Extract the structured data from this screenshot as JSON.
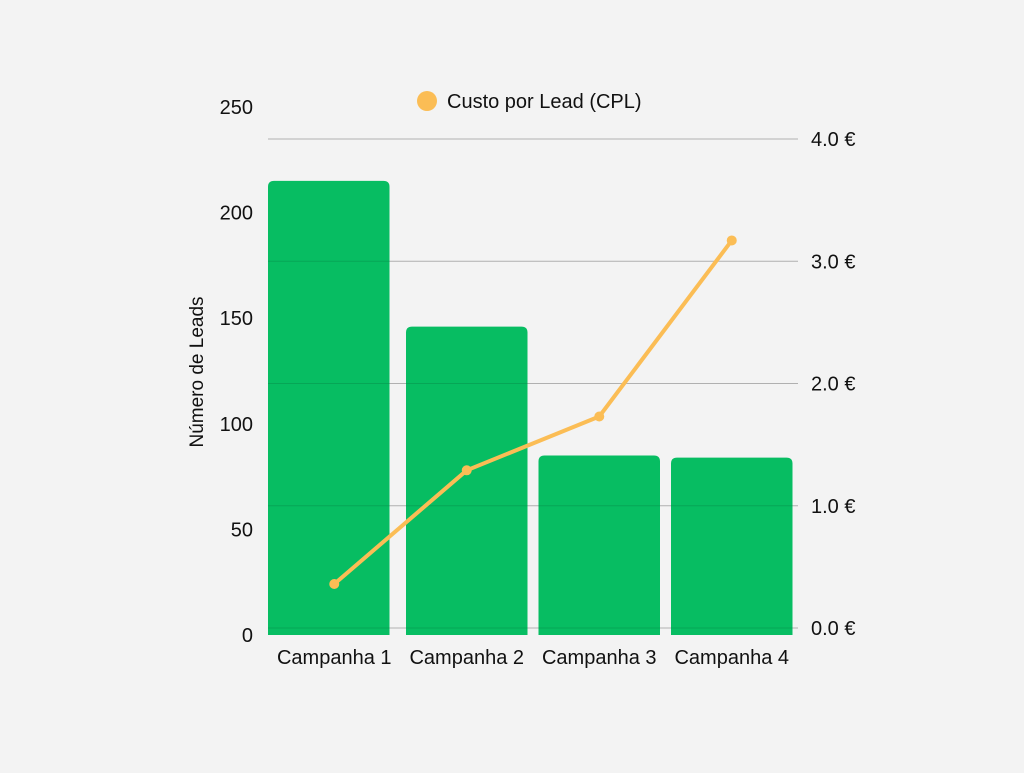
{
  "colors": {
    "background": "#f3f3f3",
    "bar": "#07bd62",
    "line": "#fbbd55",
    "grid": "#c9c9c9",
    "text": "#111111"
  },
  "legend": {
    "position": "top-center",
    "label": "Custo por Lead (CPL)"
  },
  "chart_data": {
    "type": "bar+line",
    "categories": [
      "Campanha 1",
      "Campanha 2",
      "Campanha 3",
      "Campanha 4"
    ],
    "series": [
      {
        "values": [
          215,
          146,
          85,
          84
        ],
        "type": "bar",
        "axis": "left"
      },
      {
        "name": "Custo por Lead (CPL)",
        "values": [
          0.36,
          1.29,
          1.73,
          3.17
        ],
        "type": "line",
        "axis": "right"
      }
    ],
    "ylabel": "Número de Leads",
    "ylim": [
      0,
      250
    ],
    "y_ticks": [
      0,
      50,
      100,
      150,
      200,
      250
    ],
    "y2lim": [
      0,
      4
    ],
    "y2_ticks": [
      "0.0 €",
      "1.0 €",
      "2.0 €",
      "3.0 €",
      "4.0 €"
    ],
    "grid": true
  }
}
